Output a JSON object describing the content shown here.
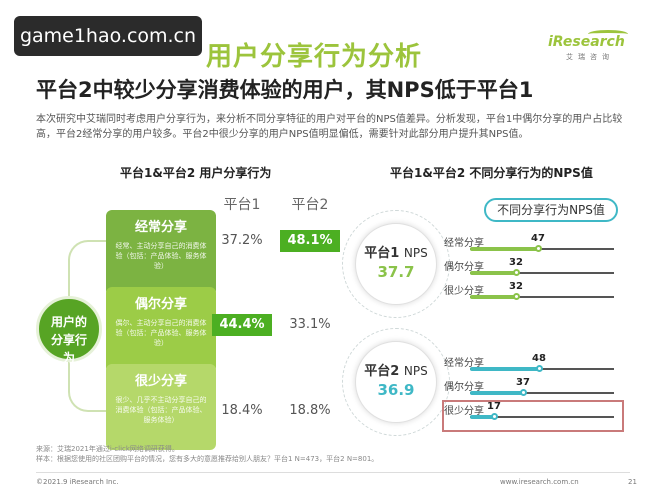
{
  "watermark": "game1hao.com.cn",
  "section_title": "用户分享行为分析",
  "logo": {
    "word": "iResearch",
    "sub": "艾瑞咨询"
  },
  "headline": "平台2中较少分享消费体验的用户，其NPS低于平台1",
  "intro": "本次研究中艾瑞同时考虑用户分享行为，来分析不同分享特征的用户对平台的NPS值差异。分析发现，平台1中偶尔分享的用户占比较高，平台2经常分享的用户较多。平台2中很少分享的用户NPS值明显偏低，需要针对此部分用户提升其NPS值。",
  "left_panel": {
    "title": "平台1&平台2 用户分享行为",
    "col1": "平台1",
    "col2": "平台2",
    "center": "用户的分享行为",
    "rows": [
      {
        "title": "经常分享",
        "desc": "经常、主动分享自己的消费体验（包括：产品体验、服务体验）",
        "p1": "37.2%",
        "p2": "48.1%"
      },
      {
        "title": "偶尔分享",
        "desc": "偶尔、主动分享自己的消费体验（包括：产品体验、服务体验）",
        "p1": "44.4%",
        "p2": "33.1%"
      },
      {
        "title": "很少分享",
        "desc": "很少、几乎不主动分享自己的消费体验（包括：产品体验、服务体验）",
        "p1": "18.4%",
        "p2": "18.8%"
      }
    ]
  },
  "right_panel": {
    "title": "平台1&平台2 不同分享行为的NPS值",
    "legend": "不同分享行为NPS值",
    "platforms": [
      {
        "name": "平台1",
        "label": "NPS",
        "nps": "37.7",
        "color": "#8bc34a",
        "bars": [
          {
            "label": "经常分享",
            "value": 47
          },
          {
            "label": "偶尔分享",
            "value": 32
          },
          {
            "label": "很少分享",
            "value": 32
          }
        ]
      },
      {
        "name": "平台2",
        "label": "NPS",
        "nps": "36.9",
        "color": "#3fb8c6",
        "bars": [
          {
            "label": "经常分享",
            "value": 48
          },
          {
            "label": "偶尔分享",
            "value": 37
          },
          {
            "label": "很少分享",
            "value": 17
          }
        ]
      }
    ]
  },
  "footnote": {
    "line1": "来源：艾瑞2021年通过i-click网络调研获得。",
    "line2": "样本：根据您使用的社区团购平台的情况，您有多大的意愿推荐给别人朋友？平台1 N=473，平台2 N=801。"
  },
  "footer": {
    "left": "©2021.9 iResearch Inc.",
    "right": "www.iresearch.com.cn",
    "page": "21"
  }
}
